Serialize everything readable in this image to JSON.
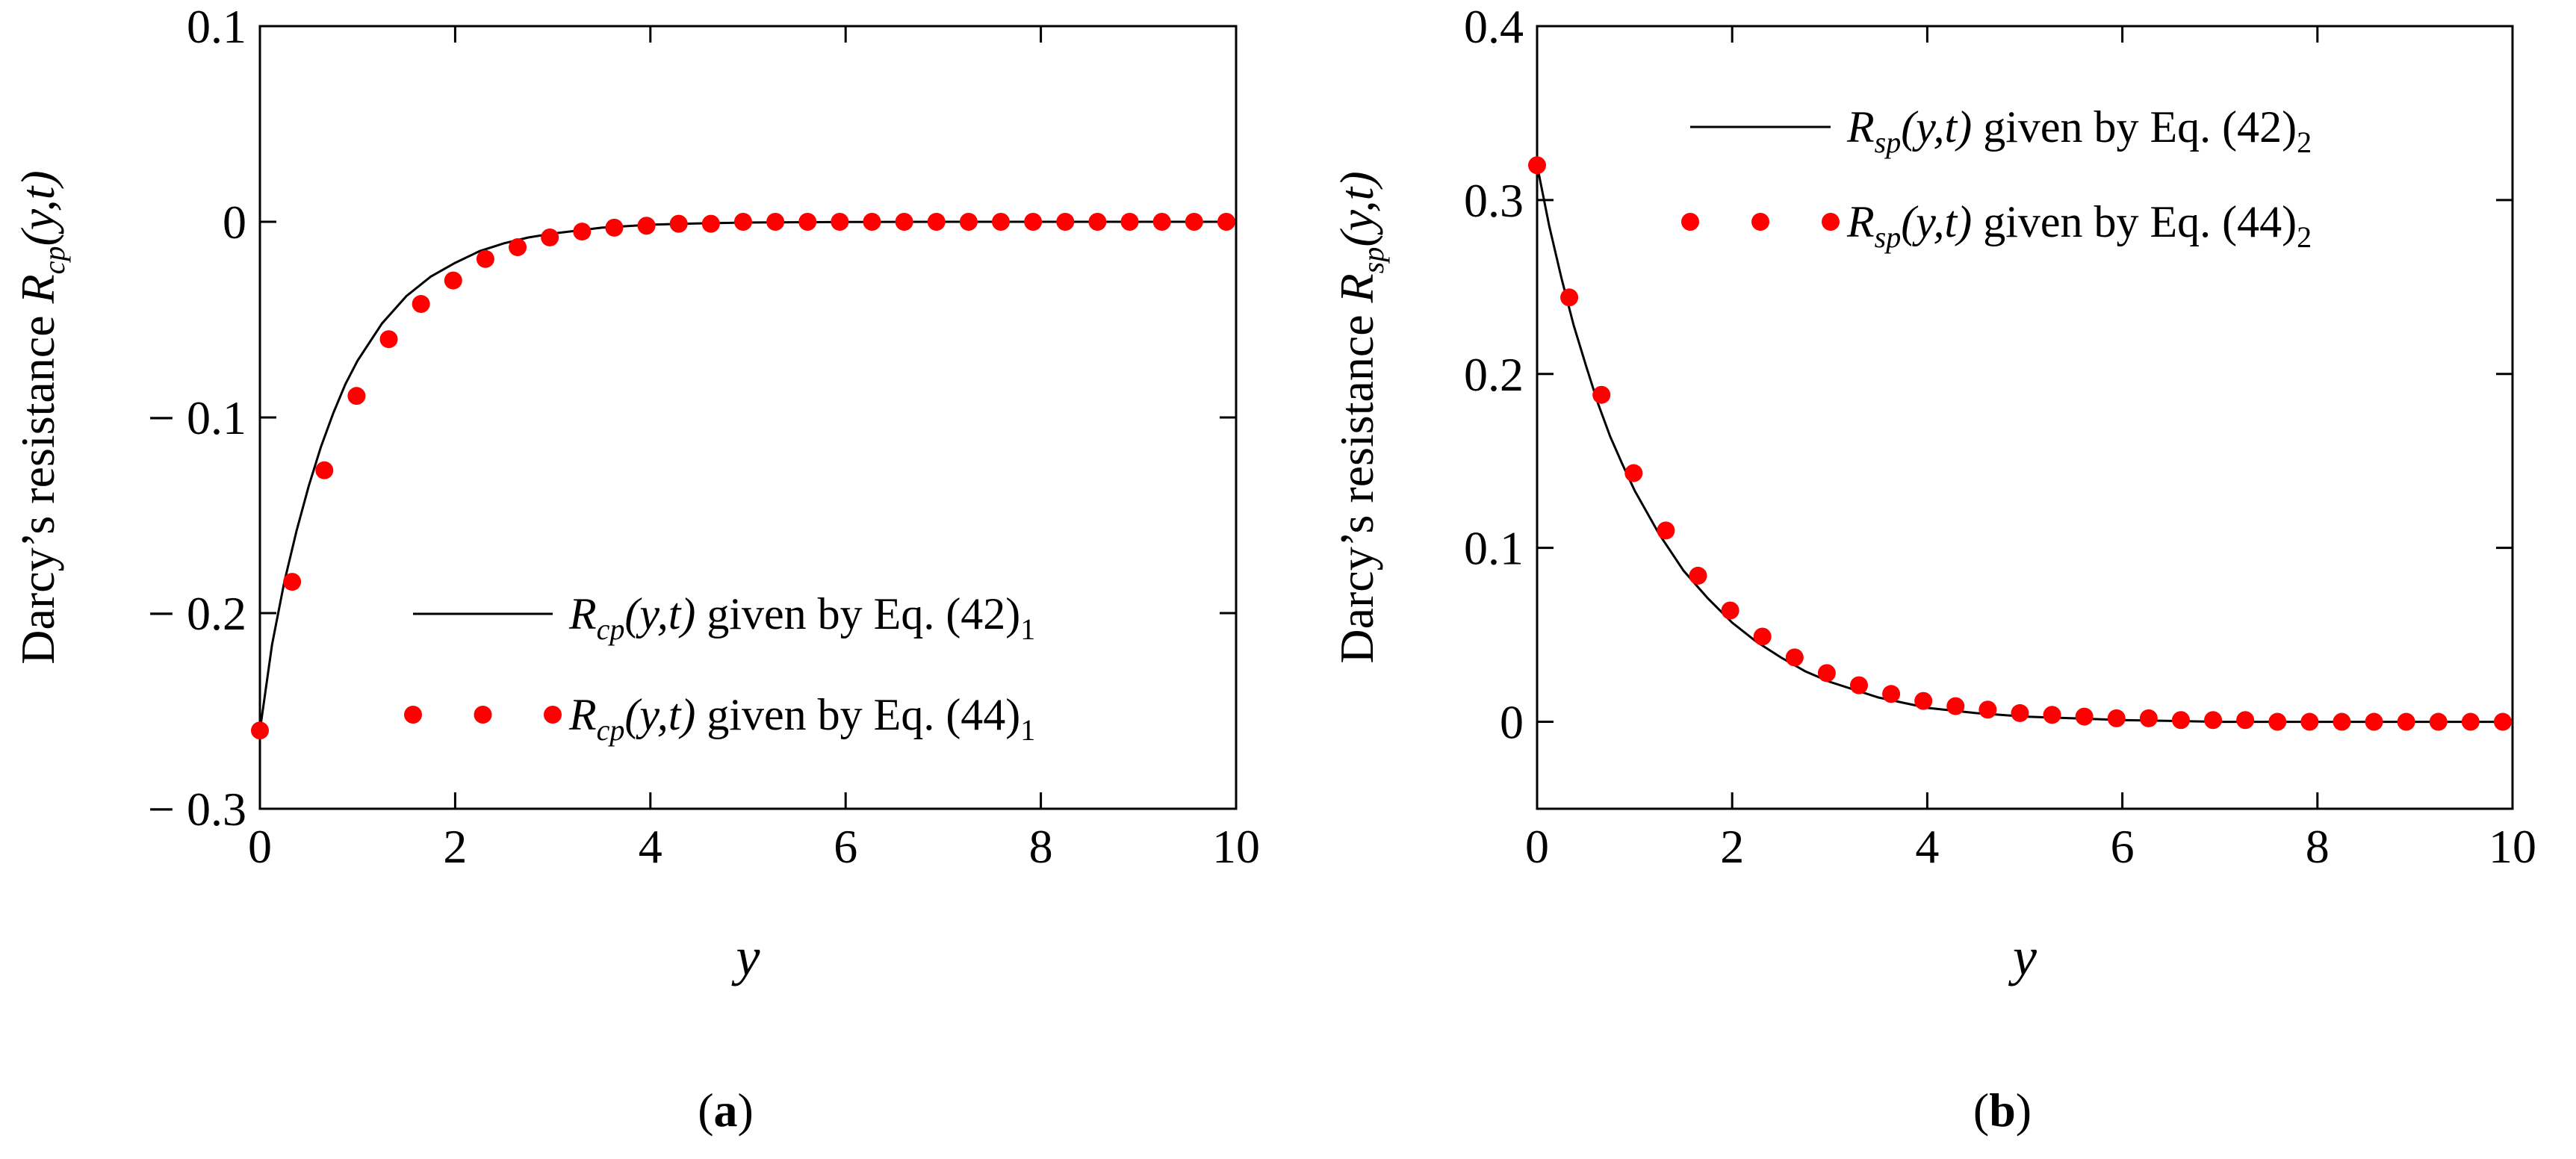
{
  "chart_data": [
    {
      "type": "line",
      "panel_label": "a",
      "xlabel": "y",
      "ylabel_prefix": "Darcy’s resistance ",
      "ylabel_sym": "R",
      "ylabel_sub": "cp",
      "ylabel_args": "(y,t)",
      "xlim": [
        0,
        10
      ],
      "ylim": [
        -0.3,
        0.1
      ],
      "xticks": [
        "0",
        "2",
        "4",
        "6",
        "8",
        "10"
      ],
      "yticks": [
        "0.1",
        "0",
        "− 0.1",
        "− 0.2",
        "− 0.3"
      ],
      "ytick_values": [
        0.1,
        0,
        -0.1,
        -0.2,
        -0.3
      ],
      "legend_position": "lower-right",
      "series": [
        {
          "name": "Rcp(y,t) given by Eq. (42)1",
          "legend_sym": "R",
          "legend_sub": "cp",
          "legend_args": "(y,t)",
          "legend_mid": " given by Eq. (42)",
          "legend_idx": "1",
          "style": "line",
          "color": "#000000",
          "x": [
            0,
            0.125,
            0.25,
            0.375,
            0.5,
            0.625,
            0.75,
            0.875,
            1,
            1.25,
            1.5,
            1.75,
            2,
            2.25,
            2.5,
            2.75,
            3,
            3.5,
            4,
            4.5,
            5,
            6,
            7,
            8,
            9,
            10
          ],
          "y": [
            -0.26,
            -0.216,
            -0.184,
            -0.158,
            -0.135,
            -0.115,
            -0.098,
            -0.083,
            -0.071,
            -0.052,
            -0.038,
            -0.028,
            -0.021,
            -0.015,
            -0.011,
            -0.008,
            -0.006,
            -0.003,
            -0.0015,
            -0.0008,
            -0.0004,
            -0.0001,
            0,
            0,
            0,
            0
          ]
        },
        {
          "name": "Rcp(y,t) given by Eq. (44)1",
          "legend_sym": "R",
          "legend_sub": "cp",
          "legend_args": "(y,t)",
          "legend_mid": " given by Eq. (44)",
          "legend_idx": "1",
          "style": "markers",
          "color": "#ff0000",
          "x": [
            0,
            0.33,
            0.66,
            0.99,
            1.32,
            1.65,
            1.98,
            2.31,
            2.64,
            2.97,
            3.3,
            3.63,
            3.96,
            4.29,
            4.62,
            4.95,
            5.28,
            5.61,
            5.94,
            6.27,
            6.6,
            6.93,
            7.26,
            7.59,
            7.92,
            8.25,
            8.58,
            8.91,
            9.24,
            9.57,
            9.9
          ],
          "y": [
            -0.26,
            -0.184,
            -0.127,
            -0.089,
            -0.06,
            -0.042,
            -0.03,
            -0.019,
            -0.013,
            -0.008,
            -0.005,
            -0.003,
            -0.002,
            -0.001,
            -0.001,
            0,
            0,
            0,
            0,
            0,
            0,
            0,
            0,
            0,
            0,
            0,
            0,
            0,
            0,
            0,
            0
          ]
        }
      ]
    },
    {
      "type": "line",
      "panel_label": "b",
      "xlabel": "y",
      "ylabel_prefix": "Darcy’s resistance ",
      "ylabel_sym": "R",
      "ylabel_sub": "sp",
      "ylabel_args": "(y,t)",
      "xlim": [
        0,
        10
      ],
      "ylim": [
        -0.05,
        0.4
      ],
      "xticks": [
        "0",
        "2",
        "4",
        "6",
        "8",
        "10"
      ],
      "yticks": [
        "0.4",
        "0.3",
        "0.2",
        "0.1",
        "0"
      ],
      "ytick_values": [
        0.4,
        0.3,
        0.2,
        0.1,
        0
      ],
      "legend_position": "top-right",
      "series": [
        {
          "name": "Rsp(y,t) given by Eq. (42)2",
          "legend_sym": "R",
          "legend_sub": "sp",
          "legend_args": "(y,t)",
          "legend_mid": " given by Eq. (42)",
          "legend_idx": "2",
          "style": "line",
          "color": "#000000",
          "x": [
            0,
            0.125,
            0.25,
            0.375,
            0.5,
            0.625,
            0.75,
            0.875,
            1,
            1.25,
            1.5,
            1.75,
            2,
            2.25,
            2.5,
            2.75,
            3,
            3.5,
            4,
            4.5,
            5,
            6,
            7,
            8,
            9,
            10
          ],
          "y": [
            0.32,
            0.285,
            0.255,
            0.228,
            0.205,
            0.183,
            0.164,
            0.148,
            0.133,
            0.108,
            0.087,
            0.071,
            0.057,
            0.046,
            0.037,
            0.029,
            0.023,
            0.014,
            0.008,
            0.005,
            0.003,
            0.001,
            0,
            0,
            0,
            0
          ]
        },
        {
          "name": "Rsp(y,t) given by Eq. (44)2",
          "legend_sym": "R",
          "legend_sub": "sp",
          "legend_args": "(y,t)",
          "legend_mid": " given by Eq. (44)",
          "legend_idx": "2",
          "style": "markers",
          "color": "#ff0000",
          "x": [
            0,
            0.33,
            0.66,
            0.99,
            1.32,
            1.65,
            1.98,
            2.31,
            2.64,
            2.97,
            3.3,
            3.63,
            3.96,
            4.29,
            4.62,
            4.95,
            5.28,
            5.61,
            5.94,
            6.27,
            6.6,
            6.93,
            7.26,
            7.59,
            7.92,
            8.25,
            8.58,
            8.91,
            9.24,
            9.57,
            9.9
          ],
          "y": [
            0.32,
            0.244,
            0.188,
            0.143,
            0.11,
            0.084,
            0.064,
            0.049,
            0.037,
            0.028,
            0.021,
            0.016,
            0.012,
            0.009,
            0.007,
            0.005,
            0.004,
            0.003,
            0.002,
            0.002,
            0.001,
            0.001,
            0.001,
            0,
            0,
            0,
            0,
            0,
            0,
            0,
            0
          ]
        }
      ]
    }
  ]
}
